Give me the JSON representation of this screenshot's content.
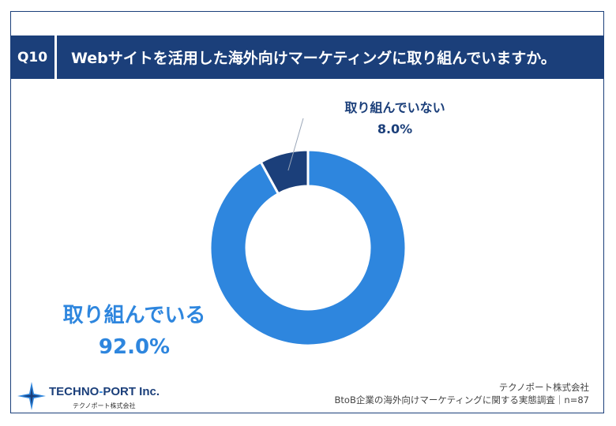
{
  "header": {
    "qnum": "Q10",
    "question": "Webサイトを活用した海外向けマーケティングに取り組んでいますか。"
  },
  "chart_data": {
    "type": "pie",
    "style": "donut",
    "slices": [
      {
        "label": "取り組んでいる",
        "value": 92.0,
        "value_label": "92.0%",
        "color": "#2e86de"
      },
      {
        "label": "取り組んでいない",
        "value": 8.0,
        "value_label": "8.0%",
        "color": "#1b3f7a"
      }
    ]
  },
  "logo": {
    "name_part1": "TECHNO",
    "name_dash": "-",
    "name_part2": "PORT Inc.",
    "sub": "テクノポート株式会社"
  },
  "source": {
    "company": "テクノポート株式会社",
    "survey": "BtoB企業の海外向けマーケティングに関する実態調査｜n=87"
  }
}
